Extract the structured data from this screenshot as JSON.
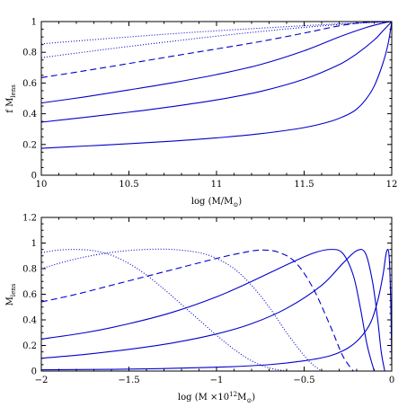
{
  "chart_data": [
    {
      "type": "line",
      "title": "",
      "xlabel": "log (M/M",
      "xlabel_sub": "⊙",
      "xlabel_tail": ")",
      "ylabel": "f M",
      "ylabel_sub": "lens",
      "xlim": [
        10,
        12
      ],
      "ylim": [
        0,
        1
      ],
      "xticks": [
        10,
        10.5,
        11,
        11.5,
        12
      ],
      "xtick_labels": [
        "10",
        "10.5",
        "11",
        "11.5",
        "12"
      ],
      "yticks": [
        0,
        0.2,
        0.4,
        0.6,
        0.8,
        1
      ],
      "ytick_labels": [
        "0",
        "0.2",
        "0.4",
        "0.6",
        "0.8",
        "1"
      ],
      "grid": false,
      "legend": "none",
      "color": "#0000cc",
      "series": [
        {
          "style": "dotted",
          "x": [
            10,
            10.25,
            10.5,
            10.75,
            11,
            11.25,
            11.5,
            11.75,
            11.9,
            12
          ],
          "y": [
            0.855,
            0.878,
            0.9,
            0.921,
            0.94,
            0.957,
            0.973,
            0.988,
            0.995,
            1.0
          ]
        },
        {
          "style": "dotted",
          "x": [
            10,
            10.25,
            10.5,
            10.75,
            11,
            11.25,
            11.5,
            11.75,
            11.9,
            12
          ],
          "y": [
            0.765,
            0.802,
            0.838,
            0.872,
            0.905,
            0.935,
            0.962,
            0.985,
            0.995,
            1.0
          ]
        },
        {
          "style": "dashed",
          "x": [
            10,
            10.25,
            10.5,
            10.75,
            11,
            11.25,
            11.5,
            11.7,
            11.85,
            12
          ],
          "y": [
            0.635,
            0.68,
            0.727,
            0.775,
            0.822,
            0.87,
            0.925,
            0.972,
            0.995,
            1.0
          ]
        },
        {
          "style": "solid",
          "x": [
            10,
            10.25,
            10.5,
            10.75,
            11,
            11.25,
            11.5,
            11.7,
            11.85,
            11.95,
            12
          ],
          "y": [
            0.47,
            0.51,
            0.555,
            0.602,
            0.655,
            0.72,
            0.81,
            0.9,
            0.96,
            0.99,
            1.0
          ]
        },
        {
          "style": "solid",
          "x": [
            10,
            10.25,
            10.5,
            10.75,
            11,
            11.25,
            11.5,
            11.7,
            11.8,
            11.9,
            11.95,
            12
          ],
          "y": [
            0.345,
            0.377,
            0.41,
            0.447,
            0.49,
            0.545,
            0.625,
            0.72,
            0.79,
            0.88,
            0.94,
            1.0
          ]
        },
        {
          "style": "solid",
          "x": [
            10,
            10.25,
            10.5,
            10.75,
            11,
            11.25,
            11.5,
            11.65,
            11.75,
            11.8,
            11.85,
            11.9,
            11.95,
            11.98,
            12
          ],
          "y": [
            0.175,
            0.19,
            0.205,
            0.222,
            0.243,
            0.27,
            0.31,
            0.35,
            0.395,
            0.43,
            0.49,
            0.58,
            0.73,
            0.86,
            1.0
          ]
        }
      ]
    },
    {
      "type": "line",
      "title": "",
      "xlabel": "log (M ×10",
      "xlabel_sup": "12",
      "xlabel_unit": "M",
      "xlabel_sub": "⊙",
      "xlabel_tail": ")",
      "ylabel": "M",
      "ylabel_sub": "lens",
      "xlim": [
        -2,
        0
      ],
      "ylim": [
        0,
        1.2
      ],
      "xticks": [
        -2,
        -1.5,
        -1,
        -0.5,
        0
      ],
      "xtick_labels": [
        "−2",
        "−1.5",
        "−1",
        "−0.5",
        "0"
      ],
      "yticks": [
        0,
        0.2,
        0.4,
        0.6,
        0.8,
        1,
        1.2
      ],
      "ytick_labels": [
        "0",
        "0.2",
        "0.4",
        "0.6",
        "0.8",
        "1",
        "1.2"
      ],
      "grid": false,
      "legend": "none",
      "color": "#0000cc",
      "series": [
        {
          "style": "dotted",
          "x": [
            -2,
            -1.9,
            -1.8,
            -1.7,
            -1.6,
            -1.5,
            -1.4,
            -1.3,
            -1.2,
            -1.1,
            -1.0,
            -0.9,
            -0.8,
            -0.7,
            -0.6
          ],
          "y": [
            0.925,
            0.945,
            0.95,
            0.94,
            0.905,
            0.84,
            0.75,
            0.64,
            0.52,
            0.4,
            0.28,
            0.17,
            0.08,
            0.025,
            0.0
          ]
        },
        {
          "style": "dotted",
          "x": [
            -2,
            -1.85,
            -1.7,
            -1.55,
            -1.4,
            -1.25,
            -1.1,
            -1.0,
            -0.9,
            -0.8,
            -0.7,
            -0.6,
            -0.5,
            -0.45,
            -0.4
          ],
          "y": [
            0.8,
            0.86,
            0.905,
            0.935,
            0.95,
            0.95,
            0.925,
            0.88,
            0.8,
            0.67,
            0.5,
            0.3,
            0.12,
            0.05,
            0.0
          ]
        },
        {
          "style": "dashed",
          "x": [
            -2,
            -1.8,
            -1.6,
            -1.4,
            -1.2,
            -1.0,
            -0.85,
            -0.75,
            -0.65,
            -0.55,
            -0.45,
            -0.35,
            -0.28,
            -0.22
          ],
          "y": [
            0.54,
            0.6,
            0.67,
            0.74,
            0.81,
            0.88,
            0.925,
            0.945,
            0.93,
            0.85,
            0.65,
            0.35,
            0.12,
            0.0
          ]
        },
        {
          "style": "solid",
          "x": [
            -2,
            -1.75,
            -1.5,
            -1.25,
            -1.0,
            -0.8,
            -0.6,
            -0.45,
            -0.35,
            -0.28,
            -0.22,
            -0.18,
            -0.14,
            -0.1
          ],
          "y": [
            0.25,
            0.3,
            0.37,
            0.46,
            0.58,
            0.7,
            0.83,
            0.92,
            0.95,
            0.92,
            0.75,
            0.5,
            0.2,
            0.0
          ]
        },
        {
          "style": "solid",
          "x": [
            -2,
            -1.75,
            -1.5,
            -1.25,
            -1.0,
            -0.8,
            -0.6,
            -0.4,
            -0.28,
            -0.2,
            -0.15,
            -0.11,
            -0.08,
            -0.06,
            -0.04
          ],
          "y": [
            0.1,
            0.13,
            0.17,
            0.22,
            0.29,
            0.37,
            0.49,
            0.67,
            0.84,
            0.94,
            0.92,
            0.7,
            0.4,
            0.15,
            0.0
          ]
        },
        {
          "style": "solid",
          "x": [
            -2,
            -1.5,
            -1.0,
            -0.7,
            -0.5,
            -0.35,
            -0.25,
            -0.18,
            -0.12,
            -0.08,
            -0.05,
            -0.03,
            -0.015,
            -0.005,
            0.0
          ],
          "y": [
            0.01,
            0.015,
            0.03,
            0.05,
            0.08,
            0.12,
            0.18,
            0.26,
            0.38,
            0.55,
            0.75,
            0.93,
            0.9,
            0.5,
            0.05
          ]
        }
      ]
    }
  ]
}
